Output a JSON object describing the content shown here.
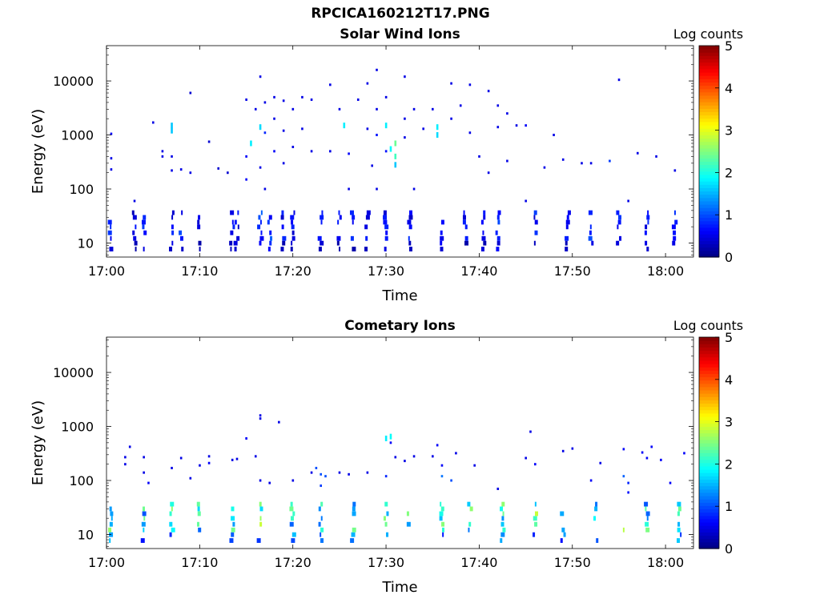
{
  "figure": {
    "title": "RPCICA160212T17.PNG"
  },
  "chart_data": [
    {
      "type": "heatmap",
      "title": "Solar Wind Ions",
      "xlabel": "Time",
      "ylabel": "Energy (eV)",
      "x_ticks": [
        "17:00",
        "17:10",
        "17:20",
        "17:30",
        "17:40",
        "17:50",
        "18:00"
      ],
      "x_range": [
        "17:00",
        "18:03"
      ],
      "y_scale": "log",
      "y_ticks": [
        "10",
        "100",
        "1000",
        "10000"
      ],
      "y_range": [
        5.5,
        45000
      ],
      "colorbar": {
        "label": "Log counts",
        "ticks": [
          "0",
          "1",
          "2",
          "3",
          "4",
          "5"
        ],
        "range": [
          0,
          5
        ],
        "colormap": "jet"
      },
      "points": [
        {
          "t": "17:00:30",
          "e": 1050,
          "c": 0.6
        },
        {
          "t": "17:00:30",
          "e": 370,
          "c": 0.5
        },
        {
          "t": "17:00:30",
          "e": 230,
          "c": 0.5
        },
        {
          "t": "17:03:00",
          "e": 60,
          "c": 0.5
        },
        {
          "t": "17:05:00",
          "e": 1700,
          "c": 0.5
        },
        {
          "t": "17:06:00",
          "e": 500,
          "c": 0.5
        },
        {
          "t": "17:06:00",
          "e": 400,
          "c": 0.5
        },
        {
          "t": "17:07:00",
          "e": 1500,
          "c": 1.6
        },
        {
          "t": "17:07:00",
          "e": 1200,
          "c": 1.6
        },
        {
          "t": "17:07:00",
          "e": 400,
          "c": 0.5
        },
        {
          "t": "17:07:00",
          "e": 220,
          "c": 0.5
        },
        {
          "t": "17:08:00",
          "e": 230,
          "c": 0.5
        },
        {
          "t": "17:09:00",
          "e": 6000,
          "c": 0.4
        },
        {
          "t": "17:09:00",
          "e": 200,
          "c": 0.5
        },
        {
          "t": "17:11:00",
          "e": 750,
          "c": 0.4
        },
        {
          "t": "17:12:00",
          "e": 240,
          "c": 0.4
        },
        {
          "t": "17:13:00",
          "e": 200,
          "c": 0.4
        },
        {
          "t": "17:15:00",
          "e": 4500,
          "c": 0.5
        },
        {
          "t": "17:15:00",
          "e": 400,
          "c": 0.6
        },
        {
          "t": "17:15:00",
          "e": 150,
          "c": 0.6
        },
        {
          "t": "17:15:30",
          "e": 700,
          "c": 1.8
        },
        {
          "t": "17:16:00",
          "e": 3000,
          "c": 0.5
        },
        {
          "t": "17:16:30",
          "e": 12000,
          "c": 0.5
        },
        {
          "t": "17:16:30",
          "e": 1400,
          "c": 1.7
        },
        {
          "t": "17:16:30",
          "e": 250,
          "c": 0.5
        },
        {
          "t": "17:17:00",
          "e": 4000,
          "c": 0.5
        },
        {
          "t": "17:17:00",
          "e": 1100,
          "c": 0.8
        },
        {
          "t": "17:17:00",
          "e": 100,
          "c": 0.5
        },
        {
          "t": "17:18:00",
          "e": 5000,
          "c": 0.5
        },
        {
          "t": "17:18:00",
          "e": 2000,
          "c": 0.5
        },
        {
          "t": "17:18:00",
          "e": 500,
          "c": 0.6
        },
        {
          "t": "17:19:00",
          "e": 4300,
          "c": 0.5
        },
        {
          "t": "17:19:00",
          "e": 1200,
          "c": 0.5
        },
        {
          "t": "17:19:00",
          "e": 300,
          "c": 0.5
        },
        {
          "t": "17:20:00",
          "e": 3000,
          "c": 0.5
        },
        {
          "t": "17:20:00",
          "e": 600,
          "c": 0.5
        },
        {
          "t": "17:21:00",
          "e": 5000,
          "c": 0.5
        },
        {
          "t": "17:21:00",
          "e": 1300,
          "c": 0.5
        },
        {
          "t": "17:22:00",
          "e": 4500,
          "c": 0.5
        },
        {
          "t": "17:22:00",
          "e": 500,
          "c": 0.5
        },
        {
          "t": "17:24:00",
          "e": 8500,
          "c": 0.5
        },
        {
          "t": "17:24:00",
          "e": 500,
          "c": 0.5
        },
        {
          "t": "17:25:00",
          "e": 3000,
          "c": 0.5
        },
        {
          "t": "17:25:30",
          "e": 1500,
          "c": 1.8
        },
        {
          "t": "17:26:00",
          "e": 450,
          "c": 0.6
        },
        {
          "t": "17:26:00",
          "e": 100,
          "c": 0.5
        },
        {
          "t": "17:27:00",
          "e": 4500,
          "c": 0.5
        },
        {
          "t": "17:28:00",
          "e": 9000,
          "c": 0.5
        },
        {
          "t": "17:28:00",
          "e": 1300,
          "c": 0.5
        },
        {
          "t": "17:28:30",
          "e": 270,
          "c": 0.5
        },
        {
          "t": "17:29:00",
          "e": 16000,
          "c": 0.5
        },
        {
          "t": "17:29:00",
          "e": 3000,
          "c": 0.5
        },
        {
          "t": "17:29:00",
          "e": 1000,
          "c": 0.7
        },
        {
          "t": "17:29:00",
          "e": 100,
          "c": 0.5
        },
        {
          "t": "17:30:00",
          "e": 5000,
          "c": 0.5
        },
        {
          "t": "17:30:00",
          "e": 1500,
          "c": 1.8
        },
        {
          "t": "17:30:00",
          "e": 500,
          "c": 0.7
        },
        {
          "t": "17:30:30",
          "e": 550,
          "c": 1.9
        },
        {
          "t": "17:31:00",
          "e": 700,
          "c": 2.4
        },
        {
          "t": "17:31:00",
          "e": 400,
          "c": 2.2
        },
        {
          "t": "17:31:00",
          "e": 280,
          "c": 1.6
        },
        {
          "t": "17:32:00",
          "e": 12000,
          "c": 0.5
        },
        {
          "t": "17:32:00",
          "e": 2000,
          "c": 0.5
        },
        {
          "t": "17:32:00",
          "e": 900,
          "c": 0.5
        },
        {
          "t": "17:33:00",
          "e": 3000,
          "c": 0.5
        },
        {
          "t": "17:33:00",
          "e": 100,
          "c": 0.5
        },
        {
          "t": "17:34:00",
          "e": 1300,
          "c": 0.5
        },
        {
          "t": "17:35:00",
          "e": 3000,
          "c": 0.5
        },
        {
          "t": "17:35:30",
          "e": 1400,
          "c": 1.8
        },
        {
          "t": "17:35:30",
          "e": 1000,
          "c": 1.7
        },
        {
          "t": "17:37:00",
          "e": 9000,
          "c": 0.5
        },
        {
          "t": "17:37:00",
          "e": 2000,
          "c": 0.5
        },
        {
          "t": "17:38:00",
          "e": 3500,
          "c": 0.5
        },
        {
          "t": "17:39:00",
          "e": 8500,
          "c": 0.5
        },
        {
          "t": "17:39:00",
          "e": 1100,
          "c": 0.5
        },
        {
          "t": "17:40:00",
          "e": 400,
          "c": 0.5
        },
        {
          "t": "17:41:00",
          "e": 6500,
          "c": 0.5
        },
        {
          "t": "17:41:00",
          "e": 200,
          "c": 0.5
        },
        {
          "t": "17:42:00",
          "e": 3500,
          "c": 0.5
        },
        {
          "t": "17:42:00",
          "e": 1400,
          "c": 0.5
        },
        {
          "t": "17:43:00",
          "e": 2500,
          "c": 0.5
        },
        {
          "t": "17:43:00",
          "e": 330,
          "c": 0.5
        },
        {
          "t": "17:44:00",
          "e": 1500,
          "c": 0.5
        },
        {
          "t": "17:45:00",
          "e": 1500,
          "c": 0.6
        },
        {
          "t": "17:45:00",
          "e": 60,
          "c": 0.5
        },
        {
          "t": "17:47:00",
          "e": 250,
          "c": 0.5
        },
        {
          "t": "17:48:00",
          "e": 1000,
          "c": 0.5
        },
        {
          "t": "17:49:00",
          "e": 350,
          "c": 0.5
        },
        {
          "t": "17:51:00",
          "e": 300,
          "c": 0.5
        },
        {
          "t": "17:52:00",
          "e": 300,
          "c": 0.5
        },
        {
          "t": "17:54:00",
          "e": 330,
          "c": 0.9
        },
        {
          "t": "17:55:00",
          "e": 10500,
          "c": 0.5
        },
        {
          "t": "17:56:00",
          "e": 60,
          "c": 0.5
        },
        {
          "t": "17:57:00",
          "e": 460,
          "c": 0.5
        },
        {
          "t": "17:59:00",
          "e": 400,
          "c": 0.5
        },
        {
          "t": "18:01:00",
          "e": 220,
          "c": 0.5
        }
      ],
      "bursts": [
        {
          "t": "17:00:30",
          "c": 0.7
        },
        {
          "t": "17:03:00",
          "c": 0.5
        },
        {
          "t": "17:04:00",
          "c": 0.7
        },
        {
          "t": "17:07:00",
          "c": 0.6
        },
        {
          "t": "17:08:00",
          "c": 0.7
        },
        {
          "t": "17:10:00",
          "c": 0.5
        },
        {
          "t": "17:13:30",
          "c": 0.6
        },
        {
          "t": "17:14:00",
          "c": 0.6
        },
        {
          "t": "17:16:30",
          "c": 0.8
        },
        {
          "t": "17:17:30",
          "c": 1.0
        },
        {
          "t": "17:19:00",
          "c": 0.6
        },
        {
          "t": "17:20:00",
          "c": 0.6
        },
        {
          "t": "17:23:00",
          "c": 0.6
        },
        {
          "t": "17:25:00",
          "c": 0.6
        },
        {
          "t": "17:26:30",
          "c": 0.6
        },
        {
          "t": "17:28:00",
          "c": 0.6
        },
        {
          "t": "17:30:00",
          "c": 0.6
        },
        {
          "t": "17:32:30",
          "c": 0.6
        },
        {
          "t": "17:36:00",
          "c": 0.7
        },
        {
          "t": "17:38:30",
          "c": 0.6
        },
        {
          "t": "17:40:30",
          "c": 0.6
        },
        {
          "t": "17:42:00",
          "c": 0.8
        },
        {
          "t": "17:46:00",
          "c": 0.7
        },
        {
          "t": "17:49:30",
          "c": 0.6
        },
        {
          "t": "17:52:00",
          "c": 0.8
        },
        {
          "t": "17:55:00",
          "c": 0.8
        },
        {
          "t": "17:58:00",
          "c": 0.6
        },
        {
          "t": "18:01:00",
          "c": 0.6
        }
      ]
    },
    {
      "type": "heatmap",
      "title": "Cometary Ions",
      "xlabel": "Time",
      "ylabel": "Energy (eV)",
      "x_ticks": [
        "17:00",
        "17:10",
        "17:20",
        "17:30",
        "17:40",
        "17:50",
        "18:00"
      ],
      "x_range": [
        "17:00",
        "18:03"
      ],
      "y_scale": "log",
      "y_ticks": [
        "10",
        "100",
        "1000",
        "10000"
      ],
      "y_range": [
        5.5,
        45000
      ],
      "colorbar": {
        "label": "Log counts",
        "ticks": [
          "0",
          "1",
          "2",
          "3",
          "4",
          "5"
        ],
        "range": [
          0,
          5
        ],
        "colormap": "jet"
      },
      "points": [
        {
          "t": "17:02:00",
          "e": 270,
          "c": 0.5
        },
        {
          "t": "17:02:00",
          "e": 200,
          "c": 0.5
        },
        {
          "t": "17:02:30",
          "e": 420,
          "c": 0.5
        },
        {
          "t": "17:04:00",
          "e": 270,
          "c": 0.5
        },
        {
          "t": "17:04:00",
          "e": 140,
          "c": 0.5
        },
        {
          "t": "17:04:30",
          "e": 90,
          "c": 0.6
        },
        {
          "t": "17:07:00",
          "e": 170,
          "c": 0.5
        },
        {
          "t": "17:08:00",
          "e": 260,
          "c": 0.5
        },
        {
          "t": "17:09:00",
          "e": 110,
          "c": 0.5
        },
        {
          "t": "17:10:00",
          "e": 190,
          "c": 0.5
        },
        {
          "t": "17:11:00",
          "e": 280,
          "c": 0.5
        },
        {
          "t": "17:11:00",
          "e": 210,
          "c": 0.6
        },
        {
          "t": "17:13:30",
          "e": 240,
          "c": 0.5
        },
        {
          "t": "17:14:00",
          "e": 250,
          "c": 0.5
        },
        {
          "t": "17:15:00",
          "e": 600,
          "c": 0.6
        },
        {
          "t": "17:16:00",
          "e": 280,
          "c": 0.5
        },
        {
          "t": "17:16:30",
          "e": 1600,
          "c": 0.5
        },
        {
          "t": "17:16:30",
          "e": 1400,
          "c": 0.5
        },
        {
          "t": "17:16:30",
          "e": 100,
          "c": 0.5
        },
        {
          "t": "17:17:30",
          "e": 90,
          "c": 0.5
        },
        {
          "t": "17:18:30",
          "e": 1200,
          "c": 0.5
        },
        {
          "t": "17:20:00",
          "e": 100,
          "c": 0.5
        },
        {
          "t": "17:22:00",
          "e": 140,
          "c": 0.5
        },
        {
          "t": "17:22:30",
          "e": 170,
          "c": 1.0
        },
        {
          "t": "17:23:00",
          "e": 130,
          "c": 1.0
        },
        {
          "t": "17:23:00",
          "e": 80,
          "c": 0.9
        },
        {
          "t": "17:23:30",
          "e": 120,
          "c": 1.0
        },
        {
          "t": "17:25:00",
          "e": 140,
          "c": 0.5
        },
        {
          "t": "17:26:00",
          "e": 130,
          "c": 0.5
        },
        {
          "t": "17:28:00",
          "e": 140,
          "c": 0.5
        },
        {
          "t": "17:30:00",
          "e": 600,
          "c": 1.8
        },
        {
          "t": "17:30:30",
          "e": 650,
          "c": 1.9
        },
        {
          "t": "17:30:30",
          "e": 500,
          "c": 0.6
        },
        {
          "t": "17:31:00",
          "e": 270,
          "c": 0.5
        },
        {
          "t": "17:30:00",
          "e": 120,
          "c": 0.8
        },
        {
          "t": "17:32:00",
          "e": 230,
          "c": 0.5
        },
        {
          "t": "17:33:00",
          "e": 280,
          "c": 0.5
        },
        {
          "t": "17:35:00",
          "e": 280,
          "c": 0.5
        },
        {
          "t": "17:35:30",
          "e": 450,
          "c": 0.6
        },
        {
          "t": "17:36:00",
          "e": 190,
          "c": 0.6
        },
        {
          "t": "17:36:00",
          "e": 120,
          "c": 1.2
        },
        {
          "t": "17:37:00",
          "e": 100,
          "c": 1.0
        },
        {
          "t": "17:37:30",
          "e": 320,
          "c": 0.5
        },
        {
          "t": "17:39:30",
          "e": 190,
          "c": 0.5
        },
        {
          "t": "17:42:00",
          "e": 70,
          "c": 0.5
        },
        {
          "t": "17:45:00",
          "e": 260,
          "c": 0.5
        },
        {
          "t": "17:45:30",
          "e": 800,
          "c": 0.5
        },
        {
          "t": "17:46:00",
          "e": 200,
          "c": 0.6
        },
        {
          "t": "17:49:00",
          "e": 350,
          "c": 0.5
        },
        {
          "t": "17:50:00",
          "e": 390,
          "c": 0.5
        },
        {
          "t": "17:52:00",
          "e": 100,
          "c": 0.6
        },
        {
          "t": "17:53:00",
          "e": 210,
          "c": 0.5
        },
        {
          "t": "17:55:30",
          "e": 380,
          "c": 0.6
        },
        {
          "t": "17:55:30",
          "e": 120,
          "c": 1.1
        },
        {
          "t": "17:56:00",
          "e": 90,
          "c": 0.8
        },
        {
          "t": "17:56:00",
          "e": 60,
          "c": 0.7
        },
        {
          "t": "17:57:30",
          "e": 330,
          "c": 0.6
        },
        {
          "t": "17:58:00",
          "e": 260,
          "c": 0.6
        },
        {
          "t": "17:58:30",
          "e": 420,
          "c": 0.6
        },
        {
          "t": "17:59:30",
          "e": 240,
          "c": 0.6
        },
        {
          "t": "18:00:30",
          "e": 90,
          "c": 0.6
        },
        {
          "t": "18:02:00",
          "e": 320,
          "c": 0.6
        }
      ],
      "bursts": [
        {
          "t": "17:00:30",
          "c": 1.9
        },
        {
          "t": "17:04:00",
          "c": 1.8
        },
        {
          "t": "17:07:00",
          "c": 1.9
        },
        {
          "t": "17:10:00",
          "c": 1.8
        },
        {
          "t": "17:13:30",
          "c": 1.9
        },
        {
          "t": "17:16:30",
          "c": 2.0
        },
        {
          "t": "17:20:00",
          "c": 1.8
        },
        {
          "t": "17:23:00",
          "c": 2.0
        },
        {
          "t": "17:26:30",
          "c": 1.9
        },
        {
          "t": "17:30:00",
          "c": 2.0
        },
        {
          "t": "17:32:30",
          "c": 1.8
        },
        {
          "t": "17:36:00",
          "c": 2.1
        },
        {
          "t": "17:39:00",
          "c": 1.9
        },
        {
          "t": "17:42:30",
          "c": 1.8
        },
        {
          "t": "17:46:00",
          "c": 2.1
        },
        {
          "t": "17:49:00",
          "c": 1.8
        },
        {
          "t": "17:52:30",
          "c": 1.9
        },
        {
          "t": "17:55:30",
          "c": 2.0
        },
        {
          "t": "17:58:00",
          "c": 1.8
        },
        {
          "t": "18:01:30",
          "c": 1.9
        }
      ]
    }
  ]
}
